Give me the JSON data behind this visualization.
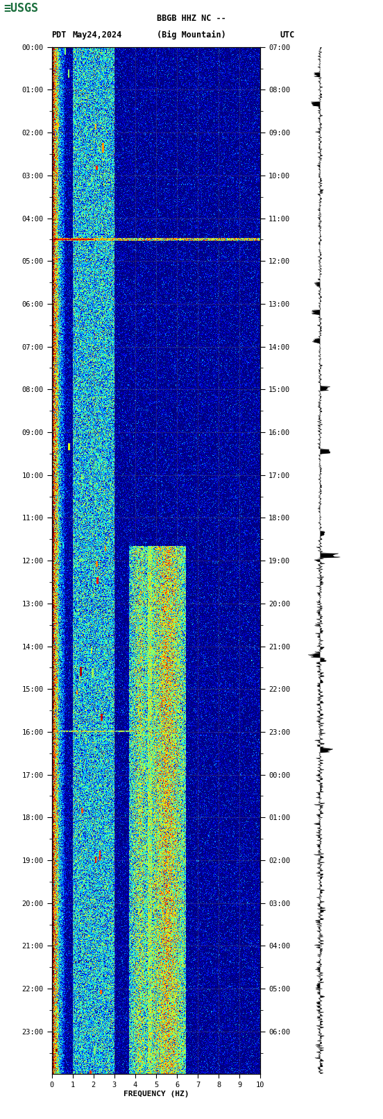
{
  "title_line1": "BBGB HHZ NC --",
  "title_line2": "(Big Mountain)",
  "label_left": "PDT",
  "label_date": "May24,2024",
  "label_right": "UTC",
  "xlabel": "FREQUENCY (HZ)",
  "left_times": [
    "00:00",
    "01:00",
    "02:00",
    "03:00",
    "04:00",
    "05:00",
    "06:00",
    "07:00",
    "08:00",
    "09:00",
    "10:00",
    "11:00",
    "12:00",
    "13:00",
    "14:00",
    "15:00",
    "16:00",
    "17:00",
    "18:00",
    "19:00",
    "20:00",
    "21:00",
    "22:00",
    "23:00"
  ],
  "right_times": [
    "07:00",
    "08:00",
    "09:00",
    "10:00",
    "11:00",
    "12:00",
    "13:00",
    "14:00",
    "15:00",
    "16:00",
    "17:00",
    "18:00",
    "19:00",
    "20:00",
    "21:00",
    "22:00",
    "23:00",
    "00:00",
    "01:00",
    "02:00",
    "03:00",
    "04:00",
    "05:00",
    "06:00"
  ],
  "freq_min": 0,
  "freq_max": 10,
  "freq_ticks": [
    0,
    1,
    2,
    3,
    4,
    5,
    6,
    7,
    8,
    9,
    10
  ],
  "n_time_steps": 1440,
  "n_freq_steps": 500,
  "bg_color": "#000080",
  "fig_bg": "#ffffff",
  "usgs_green": "#1a6e3c",
  "font_color": "#000000",
  "spectrogram_colormap": "jet",
  "waveform_color": "#000000",
  "grid_color": "#808060",
  "grid_alpha": 0.7,
  "figsize": [
    5.52,
    16.13
  ],
  "dpi": 100
}
